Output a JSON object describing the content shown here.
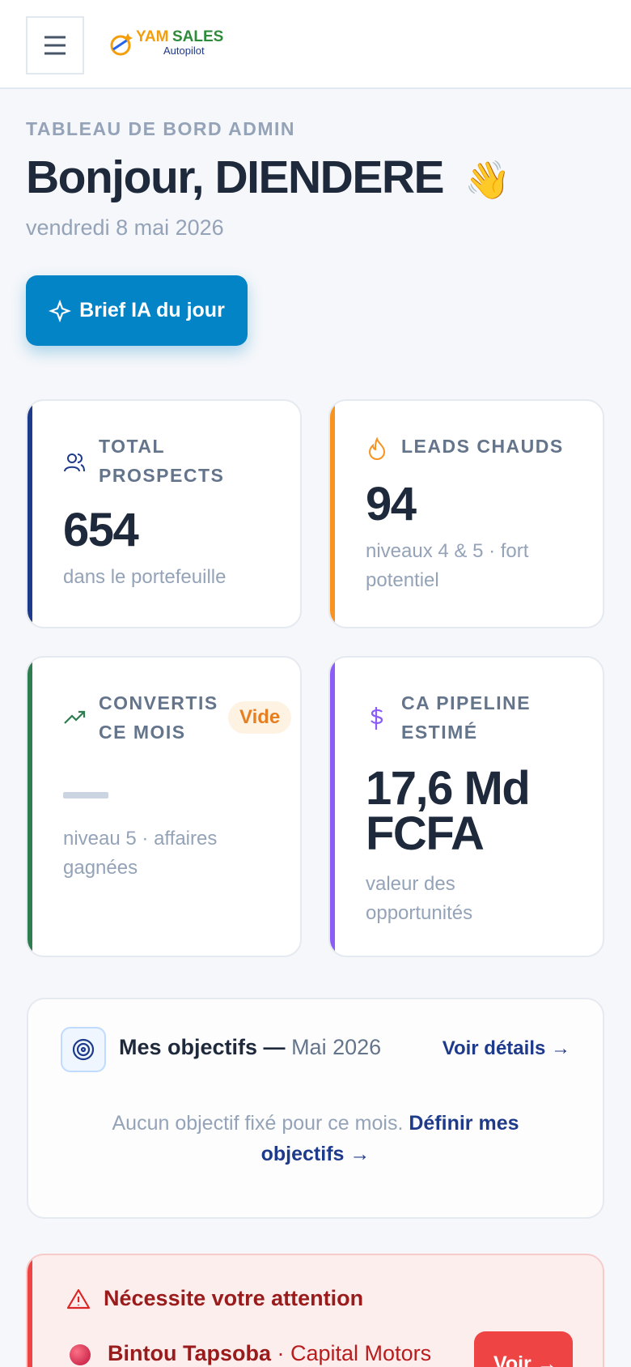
{
  "header": {
    "brand_primary": "YAM",
    "brand_secondary": "SALES",
    "brand_tagline": "Autopilot"
  },
  "page": {
    "eyebrow": "TABLEAU DE BORD ADMIN",
    "greeting": "Bonjour, DIENDERE",
    "greeting_emoji": "👋",
    "date": "vendredi 8 mai 2026",
    "brief_button": "Brief IA du jour"
  },
  "cards": [
    {
      "label": "TOTAL PROSPECTS",
      "value": "654",
      "caption": "dans le portefeuille"
    },
    {
      "label": "LEADS CHAUDS",
      "value": "94",
      "caption": "niveaux 4 & 5 · fort potentiel"
    },
    {
      "label": "CONVERTIS CE MOIS",
      "badge": "Vide",
      "caption": "niveau 5 · affaires gagnées"
    },
    {
      "label": "CA PIPELINE ESTIMÉ",
      "value": "17,6 Md FCFA",
      "caption": "valeur des opportunités"
    }
  ],
  "objectives": {
    "title": "Mes objectifs —",
    "period": "Mai 2026",
    "details_link": "Voir détails →",
    "empty_text": "Aucun objectif fixé pour ce mois.",
    "define_link": "Définir mes objectifs →"
  },
  "attention": {
    "title": "Nécessite votre attention",
    "items": [
      {
        "name": "Bintou Tapsoba",
        "company": "· Capital Motors",
        "button": "Voir →"
      }
    ]
  }
}
